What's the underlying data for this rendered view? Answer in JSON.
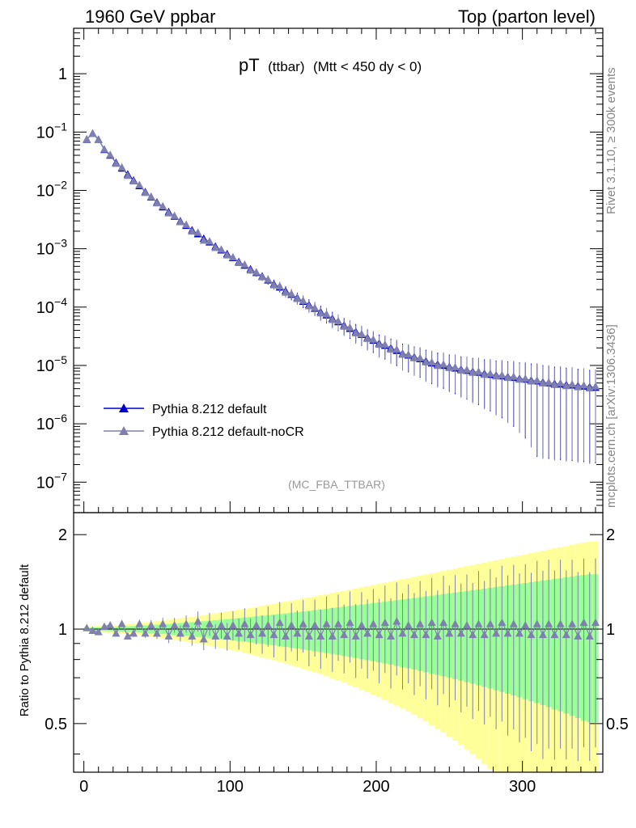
{
  "header": {
    "left": "1960 GeV ppbar",
    "right": "Top (parton level)"
  },
  "chart_data": [
    {
      "type": "line",
      "title": "pT",
      "title_sub1": "(ttbar)",
      "title_sub2": "(Mtt < 450 dy < 0)",
      "yscale": "log",
      "ylim": [
        3e-08,
        6
      ],
      "xlim": [
        -7,
        355
      ],
      "ytick_labels": [
        {
          "v": 1,
          "mant": "1",
          "exp": ""
        },
        {
          "v": 0.1,
          "mant": "10",
          "exp": "−1"
        },
        {
          "v": 0.01,
          "mant": "10",
          "exp": "−2"
        },
        {
          "v": 0.001,
          "mant": "10",
          "exp": "−3"
        },
        {
          "v": 0.0001,
          "mant": "10",
          "exp": "−4"
        },
        {
          "v": 1e-05,
          "mant": "10",
          "exp": "−5"
        },
        {
          "v": 1e-06,
          "mant": "10",
          "exp": "−6"
        },
        {
          "v": 1e-07,
          "mant": "10",
          "exp": "−7"
        }
      ],
      "legend": [
        "Pythia 8.212 default",
        "Pythia 8.212 default-noCR"
      ],
      "annotation": "(MC_FBA_TTBAR)",
      "side_labels": [
        "Rivet 3.1.10, ≥ 300k events",
        "mcplots.cern.ch [arXiv:1306.3436]"
      ],
      "series": [
        {
          "name": "Pythia 8.212 default",
          "color": "#0000cc",
          "x": [
            2,
            6,
            10,
            14,
            18,
            22,
            26,
            30,
            34,
            38,
            42,
            46,
            50,
            54,
            58,
            62,
            66,
            70,
            74,
            78,
            82,
            86,
            90,
            94,
            98,
            102,
            106,
            110,
            114,
            118,
            122,
            126,
            130,
            134,
            138,
            142,
            146,
            150,
            154,
            158,
            162,
            166,
            170,
            174,
            178,
            182,
            186,
            190,
            194,
            198,
            202,
            206,
            210,
            214,
            218,
            222,
            226,
            230,
            234,
            238,
            242,
            246,
            250,
            254,
            258,
            262,
            266,
            270,
            274,
            278,
            282,
            286,
            290,
            294,
            298,
            302,
            306,
            310,
            314,
            318,
            322,
            326,
            330,
            334,
            338,
            342,
            346,
            350
          ],
          "y": [
            0.075,
            0.095,
            0.075,
            0.05,
            0.04,
            0.03,
            0.024,
            0.019,
            0.015,
            0.012,
            0.0095,
            0.0077,
            0.0063,
            0.0052,
            0.0043,
            0.0036,
            0.003,
            0.0025,
            0.0021,
            0.0018,
            0.0015,
            0.0013,
            0.0011,
            0.00095,
            0.00082,
            0.0007,
            0.0006,
            0.00052,
            0.00045,
            0.00039,
            0.00034,
            0.00029,
            0.00025,
            0.00022,
            0.00019,
            0.000165,
            0.000145,
            0.000125,
            0.00011,
            9.5e-05,
            8.3e-05,
            7.3e-05,
            6.4e-05,
            5.6e-05,
            4.9e-05,
            4.3e-05,
            3.8e-05,
            3.4e-05,
            3e-05,
            2.7e-05,
            2.4e-05,
            2.2e-05,
            2e-05,
            1.8e-05,
            1.6e-05,
            1.5e-05,
            1.4e-05,
            1.3e-05,
            1.2e-05,
            1.1e-05,
            1.05e-05,
            1e-05,
            9.5e-06,
            9e-06,
            8.6e-06,
            8.2e-06,
            7.9e-06,
            7.6e-06,
            7.3e-06,
            7e-06,
            6.8e-06,
            6.6e-06,
            6.4e-06,
            6.2e-06,
            6e-06,
            5.8e-06,
            5.6e-06,
            5.4e-06,
            5.2e-06,
            5e-06,
            4.9e-06,
            4.8e-06,
            4.7e-06,
            4.6e-06,
            4.5e-06,
            4.4e-06,
            4.3e-06,
            4.2e-06
          ]
        },
        {
          "name": "Pythia 8.212 default-noCR",
          "color": "#8080b0",
          "x": [
            2,
            6,
            10,
            14,
            18,
            22,
            26,
            30,
            34,
            38,
            42,
            46,
            50,
            54,
            58,
            62,
            66,
            70,
            74,
            78,
            82,
            86,
            90,
            94,
            98,
            102,
            106,
            110,
            114,
            118,
            122,
            126,
            130,
            134,
            138,
            142,
            146,
            150,
            154,
            158,
            162,
            166,
            170,
            174,
            178,
            182,
            186,
            190,
            194,
            198,
            202,
            206,
            210,
            214,
            218,
            222,
            226,
            230,
            234,
            238,
            242,
            246,
            250,
            254,
            258,
            262,
            266,
            270,
            274,
            278,
            282,
            286,
            290,
            294,
            298,
            302,
            306,
            310,
            314,
            318,
            322,
            326,
            330,
            334,
            338,
            342,
            346,
            350
          ],
          "y": [
            0.076,
            0.094,
            0.074,
            0.051,
            0.041,
            0.029,
            0.025,
            0.018,
            0.0145,
            0.0125,
            0.0092,
            0.0079,
            0.0061,
            0.0054,
            0.0041,
            0.0037,
            0.0029,
            0.0026,
            0.002,
            0.0019,
            0.0014,
            0.00135,
            0.00105,
            0.00098,
            0.00078,
            0.00072,
            0.00058,
            0.00054,
            0.00043,
            0.0004,
            0.00033,
            0.0003,
            0.00024,
            0.00023,
            0.00018,
            0.00017,
            0.00014,
            0.00013,
            0.000105,
            9.8e-05,
            7.9e-05,
            7.6e-05,
            6.1e-05,
            5.8e-05,
            4.7e-05,
            4.5e-05,
            3.6e-05,
            3.5e-05,
            2.9e-05,
            2.8e-05,
            2.3e-05,
            2.3e-05,
            1.9e-05,
            1.9e-05,
            1.55e-05,
            1.55e-05,
            1.35e-05,
            1.35e-05,
            1.15e-05,
            1.15e-05,
            1e-05,
            1.05e-05,
            9.2e-06,
            9.4e-06,
            8.3e-06,
            8.5e-06,
            7.6e-06,
            7.9e-06,
            7e-06,
            7.3e-06,
            6.6e-06,
            6.9e-06,
            6.2e-06,
            6.5e-06,
            5.8e-06,
            6e-06,
            5.4e-06,
            5.6e-06,
            5e-06,
            5.2e-06,
            4.7e-06,
            5e-06,
            4.5e-06,
            4.8e-06,
            4.3e-06,
            4.6e-06,
            4.1e-06,
            4.4e-06
          ]
        }
      ]
    },
    {
      "type": "line",
      "ylabel": "Ratio to Pythia 8.212 default",
      "yscale": "log",
      "ylim": [
        0.35,
        2.35
      ],
      "xlim": [
        -7,
        355
      ],
      "ytick_labels": [
        {
          "v": 2,
          "label": "2"
        },
        {
          "v": 1,
          "label": "1"
        },
        {
          "v": 0.5,
          "label": "0.5"
        }
      ],
      "xtick_labels": [
        {
          "v": 0,
          "label": "0"
        },
        {
          "v": 100,
          "label": "100"
        },
        {
          "v": 200,
          "label": "200"
        },
        {
          "v": 300,
          "label": "300"
        }
      ],
      "band_colors": {
        "inner": "#99ff99",
        "outer": "#ffff99"
      },
      "reference_line": 1,
      "series": [
        {
          "name": "Pythia 8.212 default-noCR / Pythia 8.212 default",
          "color": "#8080b0",
          "x": [
            2,
            6,
            10,
            14,
            18,
            22,
            26,
            30,
            34,
            38,
            42,
            46,
            50,
            54,
            58,
            62,
            66,
            70,
            74,
            78,
            82,
            86,
            90,
            94,
            98,
            102,
            106,
            110,
            114,
            118,
            122,
            126,
            130,
            134,
            138,
            142,
            146,
            150,
            154,
            158,
            162,
            166,
            170,
            174,
            178,
            182,
            186,
            190,
            194,
            198,
            202,
            206,
            210,
            214,
            218,
            222,
            226,
            230,
            234,
            238,
            242,
            246,
            250,
            254,
            258,
            262,
            266,
            270,
            274,
            278,
            282,
            286,
            290,
            294,
            298,
            302,
            306,
            310,
            314,
            318,
            322,
            326,
            330,
            334,
            338,
            342,
            346,
            350
          ],
          "y": [
            1.01,
            0.99,
            0.98,
            1.02,
            1.03,
            0.97,
            1.04,
            0.95,
            0.97,
            1.04,
            0.97,
            1.03,
            0.97,
            1.04,
            0.95,
            1.03,
            0.97,
            1.04,
            0.95,
            1.06,
            0.93,
            1.04,
            0.95,
            1.03,
            0.95,
            1.03,
            0.97,
            1.04,
            0.96,
            1.03,
            0.97,
            1.03,
            0.96,
            1.05,
            0.95,
            1.03,
            0.97,
            1.04,
            0.95,
            1.03,
            0.95,
            1.04,
            0.95,
            1.04,
            0.96,
            1.05,
            0.95,
            1.03,
            0.97,
            1.04,
            0.96,
            1.05,
            0.95,
            1.06,
            0.97,
            1.03,
            0.96,
            1.04,
            0.96,
            1.05,
            0.95,
            1.05,
            0.97,
            1.04,
            0.97,
            1.03,
            0.96,
            1.04,
            0.96,
            1.04,
            0.97,
            1.05,
            0.97,
            1.04,
            0.97,
            1.03,
            0.96,
            1.04,
            0.96,
            1.04,
            0.96,
            1.04,
            0.96,
            1.04,
            0.95,
            1.05,
            0.95,
            1.05
          ]
        }
      ]
    }
  ]
}
